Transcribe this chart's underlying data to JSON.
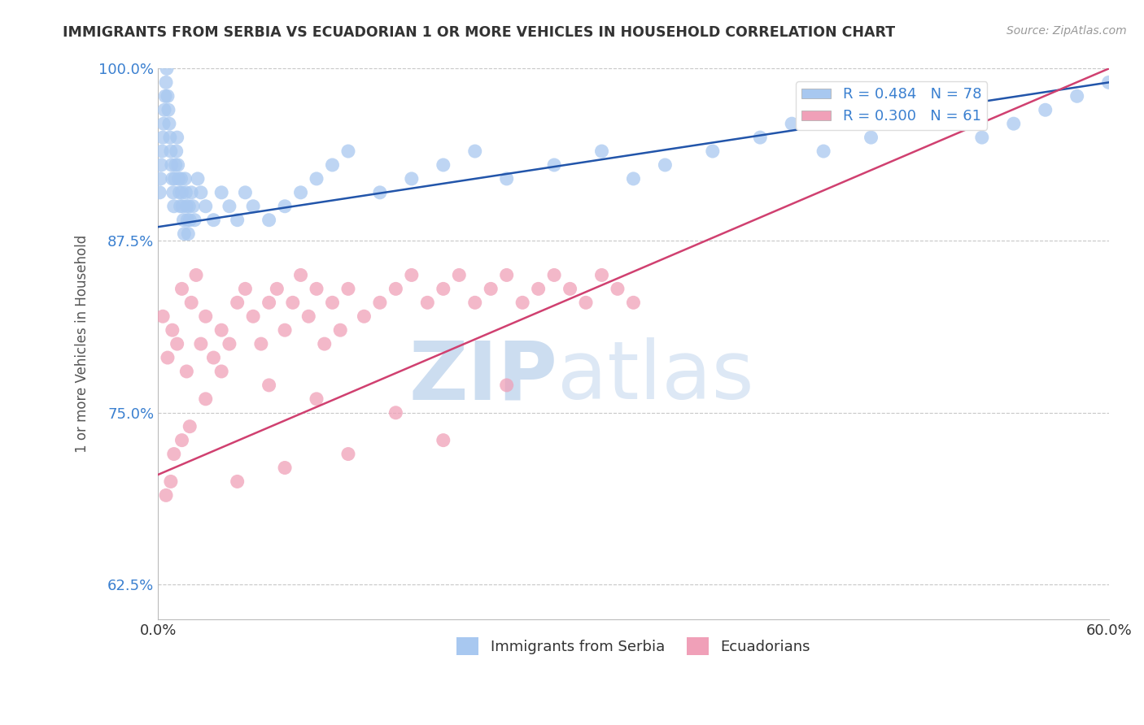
{
  "title": "IMMIGRANTS FROM SERBIA VS ECUADORIAN 1 OR MORE VEHICLES IN HOUSEHOLD CORRELATION CHART",
  "source_text": "Source: ZipAtlas.com",
  "xlabel": "",
  "ylabel": "1 or more Vehicles in Household",
  "xlim": [
    0.0,
    60.0
  ],
  "ylim": [
    60.0,
    100.0
  ],
  "xticks": [
    0.0,
    60.0
  ],
  "xticklabels": [
    "0.0%",
    "60.0%"
  ],
  "yticks": [
    62.5,
    75.0,
    87.5,
    100.0
  ],
  "yticklabels": [
    "62.5%",
    "75.0%",
    "87.5%",
    "100.0%"
  ],
  "grid_color": "#c8c8c8",
  "background_color": "#ffffff",
  "series": [
    {
      "name": "Immigrants from Serbia",
      "color": "#a8c8f0",
      "R": 0.484,
      "N": 78,
      "trend_color": "#2255aa",
      "x": [
        0.1,
        0.15,
        0.2,
        0.25,
        0.3,
        0.35,
        0.4,
        0.45,
        0.5,
        0.55,
        0.6,
        0.65,
        0.7,
        0.75,
        0.8,
        0.85,
        0.9,
        0.95,
        1.0,
        1.05,
        1.1,
        1.15,
        1.2,
        1.25,
        1.3,
        1.35,
        1.4,
        1.45,
        1.5,
        1.55,
        1.6,
        1.65,
        1.7,
        1.75,
        1.8,
        1.85,
        1.9,
        1.95,
        2.0,
        2.1,
        2.2,
        2.3,
        2.5,
        2.7,
        3.0,
        3.5,
        4.0,
        4.5,
        5.0,
        5.5,
        6.0,
        7.0,
        8.0,
        9.0,
        10.0,
        11.0,
        12.0,
        14.0,
        16.0,
        18.0,
        20.0,
        22.0,
        25.0,
        28.0,
        30.0,
        32.0,
        35.0,
        38.0,
        40.0,
        42.0,
        45.0,
        48.0,
        50.0,
        52.0,
        54.0,
        56.0,
        58.0,
        60.0
      ],
      "y": [
        91,
        92,
        93,
        94,
        95,
        96,
        97,
        98,
        99,
        100,
        98,
        97,
        96,
        95,
        94,
        93,
        92,
        91,
        90,
        92,
        93,
        94,
        95,
        93,
        92,
        91,
        90,
        92,
        91,
        90,
        89,
        88,
        92,
        91,
        90,
        89,
        88,
        90,
        89,
        91,
        90,
        89,
        92,
        91,
        90,
        89,
        91,
        90,
        89,
        91,
        90,
        89,
        90,
        91,
        92,
        93,
        94,
        91,
        92,
        93,
        94,
        92,
        93,
        94,
        92,
        93,
        94,
        95,
        96,
        94,
        95,
        96,
        97,
        95,
        96,
        97,
        98,
        99
      ],
      "trend_x": [
        0.0,
        60.0
      ],
      "trend_y": [
        88.5,
        99.0
      ]
    },
    {
      "name": "Ecuadorians",
      "color": "#f0a0b8",
      "R": 0.3,
      "N": 61,
      "trend_color": "#d04070",
      "x": [
        0.3,
        0.6,
        0.9,
        1.2,
        1.5,
        1.8,
        2.1,
        2.4,
        2.7,
        3.0,
        3.5,
        4.0,
        4.5,
        5.0,
        5.5,
        6.0,
        6.5,
        7.0,
        7.5,
        8.0,
        8.5,
        9.0,
        9.5,
        10.0,
        10.5,
        11.0,
        11.5,
        12.0,
        13.0,
        14.0,
        15.0,
        16.0,
        17.0,
        18.0,
        19.0,
        20.0,
        21.0,
        22.0,
        23.0,
        24.0,
        25.0,
        26.0,
        27.0,
        28.0,
        29.0,
        30.0,
        22.0,
        15.0,
        18.0,
        12.0,
        8.0,
        5.0,
        3.0,
        2.0,
        1.5,
        1.0,
        0.8,
        0.5,
        4.0,
        7.0,
        10.0
      ],
      "y": [
        82,
        79,
        81,
        80,
        84,
        78,
        83,
        85,
        80,
        82,
        79,
        81,
        80,
        83,
        84,
        82,
        80,
        83,
        84,
        81,
        83,
        85,
        82,
        84,
        80,
        83,
        81,
        84,
        82,
        83,
        84,
        85,
        83,
        84,
        85,
        83,
        84,
        85,
        83,
        84,
        85,
        84,
        83,
        85,
        84,
        83,
        77,
        75,
        73,
        72,
        71,
        70,
        76,
        74,
        73,
        72,
        70,
        69,
        78,
        77,
        76
      ],
      "trend_x": [
        0.0,
        60.0
      ],
      "trend_y": [
        70.5,
        100.0
      ]
    }
  ],
  "watermark_zip": "ZIP",
  "watermark_atlas": "atlas",
  "watermark_color": "#ccddf0",
  "legend_color": "#3b80d0",
  "title_color": "#333333",
  "ylabel_color": "#555555",
  "tick_color": "#333333",
  "ytick_color": "#3b80d0"
}
